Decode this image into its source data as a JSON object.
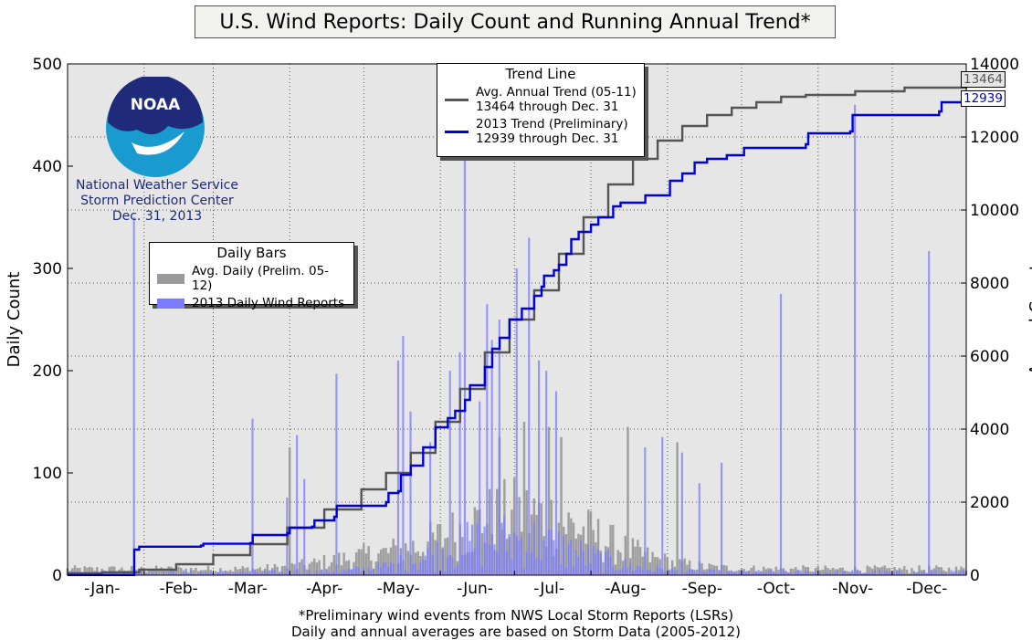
{
  "title": "U.S. Wind Reports: Daily Count and Running Annual Trend*",
  "noaa_logo": {
    "logo_text": "NOAA",
    "org_lines": [
      "National Weather Service",
      "Storm Prediction Center",
      "Dec. 31, 2013"
    ]
  },
  "footnote_lines": [
    "*Preliminary wind events from NWS Local Storm Reports (LSRs)",
    "Daily and annual averages are based on Storm Data (2005-2012)"
  ],
  "legend_trend": {
    "title": "Trend Line",
    "items": [
      {
        "line1": "Avg. Annual Trend (05-11)",
        "line2": "13464 through Dec. 31",
        "color": "#555555"
      },
      {
        "line1": "2013 Trend (Preliminary)",
        "line2": "12939 through Dec. 31",
        "color": "#0000dd"
      }
    ]
  },
  "legend_bars": {
    "title": "Daily Bars",
    "items": [
      {
        "label": "Avg. Daily (Prelim. 05-12)",
        "color": "#9a9a9a"
      },
      {
        "label": "2013 Daily Wind Reports",
        "color": "#7b7bff"
      }
    ]
  },
  "end_labels": {
    "avg": "13464",
    "y2013": "12939"
  },
  "chart_data": {
    "type": "bar+line",
    "title": "U.S. Wind Reports: Daily Count and Running Annual Trend*",
    "ylabel": "Daily Count",
    "y2label": "Annual Count",
    "ylim": [
      0,
      500
    ],
    "y2lim": [
      0,
      14000
    ],
    "xlim": [
      1,
      365
    ],
    "yticks": [
      0,
      100,
      200,
      300,
      400,
      500
    ],
    "y2ticks": [
      0,
      2000,
      4000,
      6000,
      8000,
      10000,
      12000,
      14000
    ],
    "xtick_labels": [
      "-Jan-",
      "-Feb-",
      "-Mar-",
      "-Apr-",
      "-May-",
      "-Jun-",
      "-Jul-",
      "-Aug-",
      "-Sep-",
      "-Oct-",
      "-Nov-",
      "-Dec-"
    ],
    "xtick_days": [
      15,
      46,
      74,
      105,
      135,
      166,
      196,
      227,
      258,
      288,
      319,
      349
    ],
    "grid": true,
    "series": [
      {
        "name": "2013 Trend (Preliminary)",
        "kind": "line",
        "axis": "right",
        "color": "#0000dd",
        "points": [
          [
            1,
            5
          ],
          [
            27,
            5
          ],
          [
            28,
            700
          ],
          [
            30,
            780
          ],
          [
            55,
            810
          ],
          [
            56,
            860
          ],
          [
            75,
            880
          ],
          [
            76,
            1100
          ],
          [
            90,
            1150
          ],
          [
            91,
            1300
          ],
          [
            100,
            1330
          ],
          [
            101,
            1500
          ],
          [
            109,
            1600
          ],
          [
            110,
            1900
          ],
          [
            130,
            2000
          ],
          [
            131,
            2250
          ],
          [
            135,
            2300
          ],
          [
            136,
            2750
          ],
          [
            140,
            3000
          ],
          [
            145,
            3500
          ],
          [
            150,
            4050
          ],
          [
            155,
            4300
          ],
          [
            158,
            4500
          ],
          [
            162,
            4800
          ],
          [
            164,
            5200
          ],
          [
            170,
            5700
          ],
          [
            173,
            6200
          ],
          [
            176,
            6500
          ],
          [
            180,
            7000
          ],
          [
            185,
            7300
          ],
          [
            190,
            7650
          ],
          [
            193,
            7900
          ],
          [
            194,
            8200
          ],
          [
            198,
            8350
          ],
          [
            200,
            8500
          ],
          [
            203,
            8800
          ],
          [
            205,
            9200
          ],
          [
            208,
            9400
          ],
          [
            213,
            9600
          ],
          [
            216,
            9800
          ],
          [
            222,
            10100
          ],
          [
            225,
            10200
          ],
          [
            235,
            10400
          ],
          [
            245,
            10800
          ],
          [
            250,
            11000
          ],
          [
            255,
            11300
          ],
          [
            260,
            11400
          ],
          [
            268,
            11500
          ],
          [
            275,
            11700
          ],
          [
            300,
            11800
          ],
          [
            301,
            12100
          ],
          [
            318,
            12150
          ],
          [
            319,
            12600
          ],
          [
            354,
            12700
          ],
          [
            355,
            12950
          ],
          [
            365,
            12939
          ]
        ]
      },
      {
        "name": "Avg. Annual Trend (05-11)",
        "kind": "line",
        "axis": "right",
        "color": "#555555",
        "points": [
          [
            1,
            50
          ],
          [
            15,
            80
          ],
          [
            30,
            150
          ],
          [
            45,
            300
          ],
          [
            60,
            550
          ],
          [
            75,
            850
          ],
          [
            90,
            1300
          ],
          [
            105,
            1800
          ],
          [
            120,
            2350
          ],
          [
            130,
            2800
          ],
          [
            140,
            3350
          ],
          [
            150,
            4200
          ],
          [
            160,
            5100
          ],
          [
            170,
            6100
          ],
          [
            180,
            7000
          ],
          [
            190,
            7800
          ],
          [
            200,
            8800
          ],
          [
            210,
            9800
          ],
          [
            220,
            10700
          ],
          [
            230,
            11400
          ],
          [
            240,
            11900
          ],
          [
            250,
            12300
          ],
          [
            260,
            12600
          ],
          [
            270,
            12800
          ],
          [
            280,
            12950
          ],
          [
            290,
            13100
          ],
          [
            300,
            13150
          ],
          [
            320,
            13250
          ],
          [
            340,
            13350
          ],
          [
            365,
            13464
          ]
        ]
      }
    ],
    "bar_series": [
      {
        "name": "Avg. Daily (Prelim. 05-12)",
        "color": "#9a9a9a",
        "shape": "seasonal average with day-to-day variation",
        "peak_values": [
          [
            91,
            125
          ],
          [
            176,
            135
          ],
          [
            186,
            150
          ],
          [
            196,
            145
          ],
          [
            201,
            135
          ],
          [
            228,
            145
          ],
          [
            248,
            130
          ]
        ]
      },
      {
        "name": "2013 Daily Wind Reports",
        "color": "#7b7bff",
        "spikes": [
          [
            28,
            350
          ],
          [
            76,
            153
          ],
          [
            90,
            76
          ],
          [
            94,
            137
          ],
          [
            97,
            94
          ],
          [
            110,
            197
          ],
          [
            135,
            210
          ],
          [
            137,
            234
          ],
          [
            140,
            160
          ],
          [
            148,
            130
          ],
          [
            156,
            200
          ],
          [
            160,
            218
          ],
          [
            162,
            410
          ],
          [
            168,
            170
          ],
          [
            171,
            265
          ],
          [
            173,
            230
          ],
          [
            176,
            250
          ],
          [
            183,
            300
          ],
          [
            188,
            330
          ],
          [
            192,
            210
          ],
          [
            195,
            200
          ],
          [
            199,
            180
          ],
          [
            235,
            125
          ],
          [
            242,
            135
          ],
          [
            250,
            120
          ],
          [
            257,
            90
          ],
          [
            266,
            110
          ],
          [
            290,
            275
          ],
          [
            320,
            460
          ],
          [
            350,
            317
          ]
        ]
      }
    ]
  }
}
